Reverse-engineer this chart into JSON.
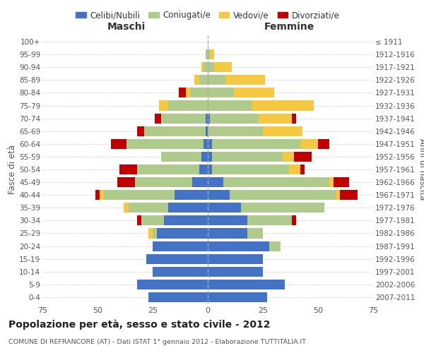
{
  "age_groups": [
    "0-4",
    "5-9",
    "10-14",
    "15-19",
    "20-24",
    "25-29",
    "30-34",
    "35-39",
    "40-44",
    "45-49",
    "50-54",
    "55-59",
    "60-64",
    "65-69",
    "70-74",
    "75-79",
    "80-84",
    "85-89",
    "90-94",
    "95-99",
    "100+"
  ],
  "birth_years": [
    "2007-2011",
    "2002-2006",
    "1997-2001",
    "1992-1996",
    "1987-1991",
    "1982-1986",
    "1977-1981",
    "1972-1976",
    "1967-1971",
    "1962-1966",
    "1957-1961",
    "1952-1956",
    "1947-1951",
    "1942-1946",
    "1937-1941",
    "1932-1936",
    "1927-1931",
    "1922-1926",
    "1917-1921",
    "1912-1916",
    "≤ 1911"
  ],
  "male": {
    "celibi": [
      27,
      32,
      25,
      28,
      25,
      23,
      20,
      18,
      15,
      7,
      4,
      3,
      2,
      1,
      1,
      0,
      0,
      0,
      0,
      0,
      0
    ],
    "coniugati": [
      0,
      0,
      0,
      0,
      0,
      2,
      10,
      18,
      32,
      26,
      28,
      18,
      35,
      28,
      20,
      18,
      8,
      4,
      2,
      1,
      0
    ],
    "vedovi": [
      0,
      0,
      0,
      0,
      0,
      2,
      0,
      2,
      2,
      0,
      0,
      0,
      0,
      0,
      0,
      4,
      2,
      2,
      1,
      0,
      0
    ],
    "divorziati": [
      0,
      0,
      0,
      0,
      0,
      0,
      2,
      0,
      2,
      8,
      8,
      0,
      7,
      3,
      3,
      0,
      3,
      0,
      0,
      0,
      0
    ]
  },
  "female": {
    "nubili": [
      27,
      35,
      25,
      25,
      28,
      18,
      18,
      15,
      10,
      7,
      2,
      2,
      2,
      0,
      1,
      0,
      0,
      0,
      0,
      0,
      0
    ],
    "coniugate": [
      0,
      0,
      0,
      0,
      5,
      7,
      20,
      38,
      48,
      48,
      35,
      32,
      40,
      25,
      22,
      20,
      12,
      8,
      3,
      1,
      0
    ],
    "vedove": [
      0,
      0,
      0,
      0,
      0,
      0,
      0,
      0,
      2,
      2,
      5,
      5,
      8,
      18,
      15,
      28,
      18,
      18,
      8,
      2,
      0
    ],
    "divorziate": [
      0,
      0,
      0,
      0,
      0,
      0,
      2,
      0,
      8,
      7,
      2,
      8,
      5,
      0,
      2,
      0,
      0,
      0,
      0,
      0,
      0
    ]
  },
  "colors": {
    "celibi": "#4472C4",
    "coniugati": "#AECB8C",
    "vedovi": "#F5C842",
    "divorziati": "#C00000"
  },
  "title": "Popolazione per età, sesso e stato civile - 2012",
  "subtitle": "COMUNE DI REFRANCORE (AT) - Dati ISTAT 1° gennaio 2012 - Elaborazione TUTTITALIA.IT",
  "xlabel_left": "Maschi",
  "xlabel_right": "Femmine",
  "ylabel_left": "Fasce di età",
  "ylabel_right": "Anni di nascita",
  "xlim": 75,
  "legend_labels": [
    "Celibi/Nubili",
    "Coniugati/e",
    "Vedovi/e",
    "Divorziati/e"
  ],
  "background_color": "#ffffff"
}
